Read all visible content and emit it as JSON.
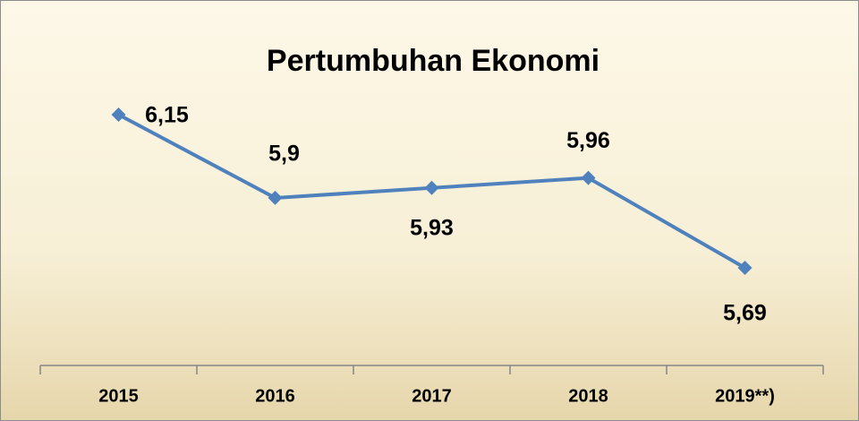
{
  "chart_data": {
    "type": "line",
    "title": "Pertumbuhan Ekonomi",
    "categories": [
      "2015",
      "2016",
      "2017",
      "2018",
      "2019**)"
    ],
    "series": [
      {
        "color": "#4f81bd",
        "values": [
          6.15,
          5.9,
          5.93,
          5.96,
          5.69
        ],
        "value_labels": [
          "6,15",
          "5,9",
          "5,93",
          "5,96",
          "5,69"
        ]
      }
    ]
  }
}
